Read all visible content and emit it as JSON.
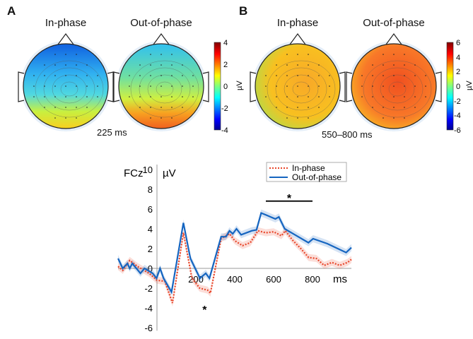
{
  "panels": {
    "a": {
      "letter": "A",
      "titles": [
        "In-phase",
        "Out-of-phase"
      ],
      "time": "225 ms",
      "colorbar": {
        "ticks": [
          "4",
          "2",
          "0",
          "-2",
          "-4"
        ],
        "unit": "µV"
      }
    },
    "b": {
      "letter": "B",
      "titles": [
        "In-phase",
        "Out-of-phase"
      ],
      "time": "550–800 ms",
      "colorbar": {
        "ticks": [
          "6",
          "4",
          "2",
          "0",
          "-2",
          "-4",
          "-6"
        ],
        "unit": "µV"
      }
    }
  },
  "chart_data": {
    "type": "line",
    "title": "FCz",
    "ylabel": "µV",
    "xlabel": "ms",
    "xlim": [
      -200,
      1000
    ],
    "ylim": [
      -6,
      10
    ],
    "xticks": [
      200,
      400,
      600,
      800
    ],
    "yticks": [
      10,
      8,
      6,
      4,
      2,
      0,
      -2,
      -4,
      -6
    ],
    "legend": {
      "placement": "top-right",
      "entries": [
        "In-phase",
        "Out-of-phase"
      ]
    },
    "series": [
      {
        "name": "In-phase",
        "color": "#e8462a",
        "style": "dotted",
        "x": [
          -200,
          -176,
          -140,
          -100,
          -40,
          0,
          40,
          80,
          136,
          180,
          220,
          260,
          275,
          330,
          373,
          400,
          440,
          480,
          520,
          560,
          600,
          640,
          660,
          700,
          740,
          780,
          820,
          860,
          900,
          940,
          980,
          1000
        ],
        "y": [
          0.2,
          -0.2,
          0.8,
          0.2,
          -0.5,
          -1.2,
          -1.3,
          -3.5,
          3.6,
          -1,
          -2,
          -2.2,
          -2.5,
          3,
          3.5,
          2.8,
          2.3,
          2.6,
          3.8,
          3.6,
          3.7,
          3.3,
          3.8,
          2.8,
          2,
          1.1,
          1.0,
          0.3,
          0.6,
          0.3,
          0.6,
          0.9
        ]
      },
      {
        "name": "Out-of-phase",
        "color": "#1565c0",
        "style": "solid",
        "x": [
          -200,
          -176,
          -152,
          -140,
          -127,
          -85,
          -64,
          -22,
          -2,
          16,
          34,
          75,
          136,
          172,
          221,
          251,
          270,
          330,
          355,
          373,
          390,
          409,
          433,
          487,
          512,
          536,
          561,
          609,
          627,
          657,
          718,
          779,
          803,
          876,
          973,
          1000
        ],
        "y": [
          1.0,
          0,
          0.5,
          0,
          0.5,
          -0.5,
          0,
          -0.5,
          -1,
          0,
          -1,
          -2.4,
          4.6,
          1,
          -1,
          -0.5,
          -1,
          3.2,
          3.2,
          3.8,
          3.5,
          4,
          3.4,
          3.8,
          3.9,
          5.6,
          5.4,
          5.0,
          5.2,
          4,
          3.3,
          2.6,
          3.0,
          2.5,
          1.6,
          2.1
        ]
      }
    ],
    "annotations": [
      {
        "text": "*",
        "x": 245,
        "y": -4,
        "note": "significance"
      },
      {
        "text": "*",
        "x": 680,
        "y": 7.3,
        "range": [
          560,
          800
        ],
        "note": "significance bar"
      }
    ]
  }
}
